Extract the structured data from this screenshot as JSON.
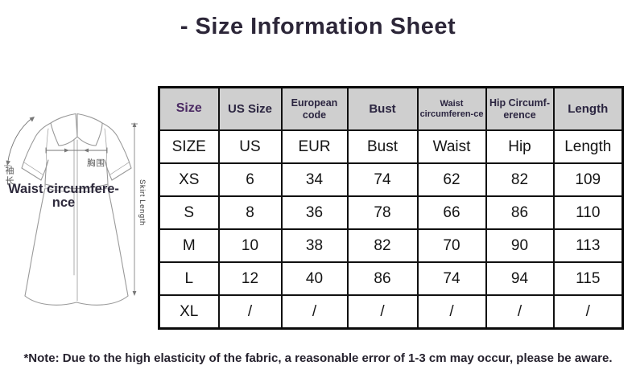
{
  "title": "- Size Information Sheet",
  "illustration": {
    "sleeve_length_label_cn": "袖长",
    "bust_label_cn": "胸围",
    "waist_label_line1": "Waist circumfere-",
    "waist_label_line2": "nce",
    "skirt_length_label": "Skirt Length"
  },
  "table": {
    "headers": [
      "Size",
      "US Size",
      "European code",
      "Bust",
      "Waist circumferen-ce",
      "Hip Circumf-erence",
      "Length"
    ],
    "rows": [
      [
        "SIZE",
        "US",
        "EUR",
        "Bust",
        "Waist",
        "Hip",
        "Length"
      ],
      [
        "XS",
        "6",
        "34",
        "74",
        "62",
        "82",
        "109"
      ],
      [
        "S",
        "8",
        "36",
        "78",
        "66",
        "86",
        "110"
      ],
      [
        "M",
        "10",
        "38",
        "82",
        "70",
        "90",
        "113"
      ],
      [
        "L",
        "12",
        "40",
        "86",
        "74",
        "94",
        "115"
      ],
      [
        "XL",
        "/",
        "/",
        "/",
        "/",
        "/",
        "/"
      ]
    ]
  },
  "note": "*Note: Due to the high elasticity of the fabric, a reasonable error of 1-3 cm may occur, please be aware.",
  "colors": {
    "accent_text": "#2c2638",
    "header_bg": "#cfcfcf",
    "size_header_text": "#4b2a63",
    "table_border": "#0a0a0a"
  }
}
